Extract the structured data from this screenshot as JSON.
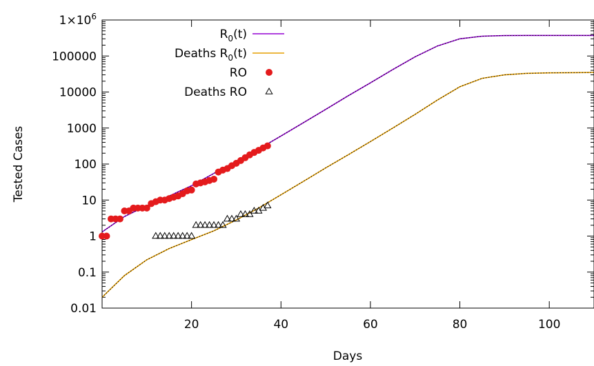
{
  "chart_data": {
    "type": "scatter",
    "xlabel": "Days",
    "ylabel": "Tested Cases",
    "xlim": [
      0,
      110
    ],
    "ylim": [
      0.01,
      1000000
    ],
    "yscale": "log",
    "grid": false,
    "legend_position": "top-left",
    "x_ticks": [
      20,
      40,
      60,
      80,
      100
    ],
    "y_ticks": [
      {
        "value": 0.01,
        "label": "0.01"
      },
      {
        "value": 0.1,
        "label": "0.1"
      },
      {
        "value": 1,
        "label": "1"
      },
      {
        "value": 10,
        "label": "10"
      },
      {
        "value": 100,
        "label": "100"
      },
      {
        "value": 1000,
        "label": "1000"
      },
      {
        "value": 10000,
        "label": "10000"
      },
      {
        "value": 100000,
        "label": "100000"
      },
      {
        "value": 1000000,
        "label": "1×10",
        "sup": "6"
      }
    ],
    "series": [
      {
        "name": "R",
        "name_sub": "0",
        "name_suffix": "(t)",
        "kind": "line",
        "color": "#9400d3",
        "x": [
          0,
          5,
          10,
          15,
          20,
          25,
          30,
          35,
          40,
          45,
          50,
          55,
          60,
          65,
          70,
          75,
          80,
          85,
          90,
          95,
          100,
          105,
          110
        ],
        "y": [
          1.3,
          3.5,
          7,
          13,
          25,
          55,
          120,
          260,
          600,
          1400,
          3300,
          7800,
          18000,
          42000,
          95000,
          190000,
          300000,
          355000,
          370000,
          372000,
          372000,
          372000,
          372000
        ]
      },
      {
        "name": "Deaths R",
        "name_sub": "0",
        "name_suffix": "(t)",
        "kind": "line",
        "color": "#e69f00",
        "x": [
          0,
          2,
          5,
          10,
          15,
          20,
          25,
          30,
          35,
          40,
          45,
          50,
          55,
          60,
          65,
          70,
          75,
          80,
          85,
          90,
          95,
          100,
          105,
          110
        ],
        "y": [
          0.02,
          0.035,
          0.08,
          0.22,
          0.45,
          0.8,
          1.4,
          2.8,
          6,
          14,
          33,
          78,
          180,
          420,
          1000,
          2400,
          6000,
          14000,
          24000,
          30000,
          33000,
          34000,
          34500,
          35000
        ]
      },
      {
        "name": "RO",
        "kind": "points",
        "marker": "circle",
        "color": "#e41a1c",
        "x": [
          0,
          1,
          2,
          3,
          4,
          5,
          6,
          7,
          8,
          9,
          10,
          11,
          12,
          13,
          14,
          15,
          16,
          17,
          18,
          19,
          20,
          21,
          22,
          23,
          24,
          25,
          26,
          27,
          28,
          29,
          30,
          31,
          32,
          33,
          34,
          35,
          36,
          37
        ],
        "y": [
          1,
          1,
          3,
          3,
          3,
          5,
          5,
          6,
          6,
          6,
          6,
          8,
          9,
          10,
          10,
          11,
          12,
          13,
          15,
          18,
          19,
          28,
          30,
          32,
          35,
          38,
          60,
          68,
          75,
          90,
          105,
          125,
          150,
          180,
          210,
          240,
          280,
          320
        ]
      },
      {
        "name": "Deaths RO",
        "kind": "points",
        "marker": "triangle",
        "color": "#000000",
        "x": [
          12,
          13,
          14,
          15,
          16,
          17,
          18,
          19,
          20,
          21,
          22,
          23,
          24,
          25,
          26,
          27,
          28,
          29,
          30,
          31,
          32,
          33,
          34,
          35,
          36,
          37
        ],
        "y": [
          1,
          1,
          1,
          1,
          1,
          1,
          1,
          1,
          1,
          2,
          2,
          2,
          2,
          2,
          2,
          2,
          3,
          3,
          3,
          4,
          4,
          4,
          5,
          5,
          6,
          7
        ]
      }
    ]
  }
}
